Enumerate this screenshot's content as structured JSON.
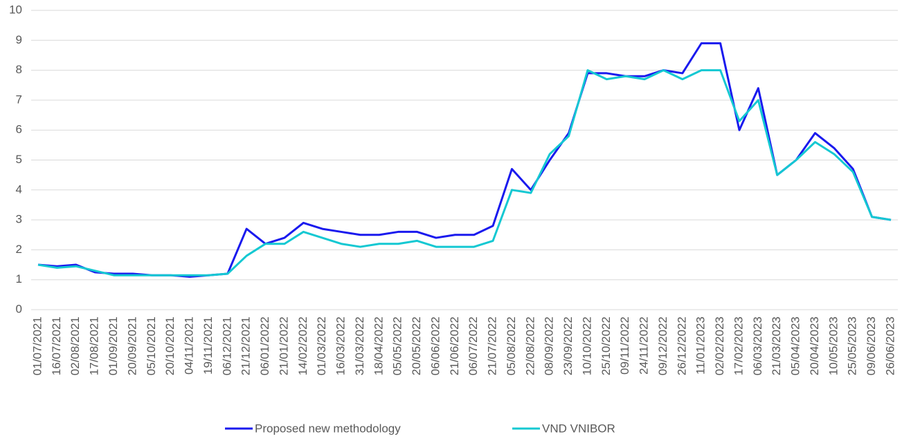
{
  "chart_data": {
    "type": "line",
    "categories": [
      "01/07/2021",
      "16/07/2021",
      "02/08/2021",
      "17/08/2021",
      "01/09/2021",
      "20/09/2021",
      "05/10/2021",
      "20/10/2021",
      "04/11/2021",
      "19/11/2021",
      "06/12/2021",
      "21/12/2021",
      "06/01/2022",
      "21/01/2022",
      "14/02/2022",
      "01/03/2022",
      "16/03/2022",
      "31/03/2022",
      "18/04/2022",
      "05/05/2022",
      "20/05/2022",
      "06/06/2022",
      "21/06/2022",
      "06/07/2022",
      "21/07/2022",
      "05/08/2022",
      "22/08/2022",
      "08/09/2022",
      "23/09/2022",
      "10/10/2022",
      "25/10/2022",
      "09/11/2022",
      "24/11/2022",
      "09/12/2022",
      "26/12/2022",
      "11/01/2023",
      "02/02/2023",
      "17/02/2023",
      "06/03/2023",
      "21/03/2023",
      "05/04/2023",
      "20/04/2023",
      "10/05/2023",
      "25/05/2023",
      "09/06/2023",
      "26/06/2023"
    ],
    "series": [
      {
        "name": "Proposed new methodology",
        "color": "#1a1aee",
        "values": [
          1.5,
          1.45,
          1.5,
          1.25,
          1.2,
          1.2,
          1.15,
          1.15,
          1.1,
          1.15,
          1.2,
          2.7,
          2.2,
          2.4,
          2.9,
          2.7,
          2.6,
          2.5,
          2.5,
          2.6,
          2.6,
          2.4,
          2.5,
          2.5,
          2.8,
          4.7,
          4.0,
          5.0,
          5.9,
          7.9,
          7.9,
          7.8,
          7.8,
          8.0,
          7.9,
          8.9,
          8.9,
          6.0,
          7.4,
          4.5,
          5.0,
          5.9,
          5.4,
          4.7,
          3.1,
          3.0
        ]
      },
      {
        "name": "VND VNIBOR",
        "color": "#14c8d2",
        "values": [
          1.5,
          1.4,
          1.45,
          1.3,
          1.15,
          1.15,
          1.15,
          1.15,
          1.15,
          1.15,
          1.2,
          1.8,
          2.2,
          2.2,
          2.6,
          2.4,
          2.2,
          2.1,
          2.2,
          2.2,
          2.3,
          2.1,
          2.1,
          2.1,
          2.3,
          4.0,
          3.9,
          5.2,
          5.8,
          8.0,
          7.7,
          7.8,
          7.7,
          8.0,
          7.7,
          8.0,
          8.0,
          6.3,
          7.0,
          4.5,
          5.0,
          5.6,
          5.2,
          4.6,
          3.1,
          3.0
        ]
      }
    ],
    "ylim": [
      0,
      10
    ],
    "yticks": [
      0,
      1,
      2,
      3,
      4,
      5,
      6,
      7,
      8,
      9,
      10
    ],
    "grid": true,
    "legend": "bottom"
  }
}
